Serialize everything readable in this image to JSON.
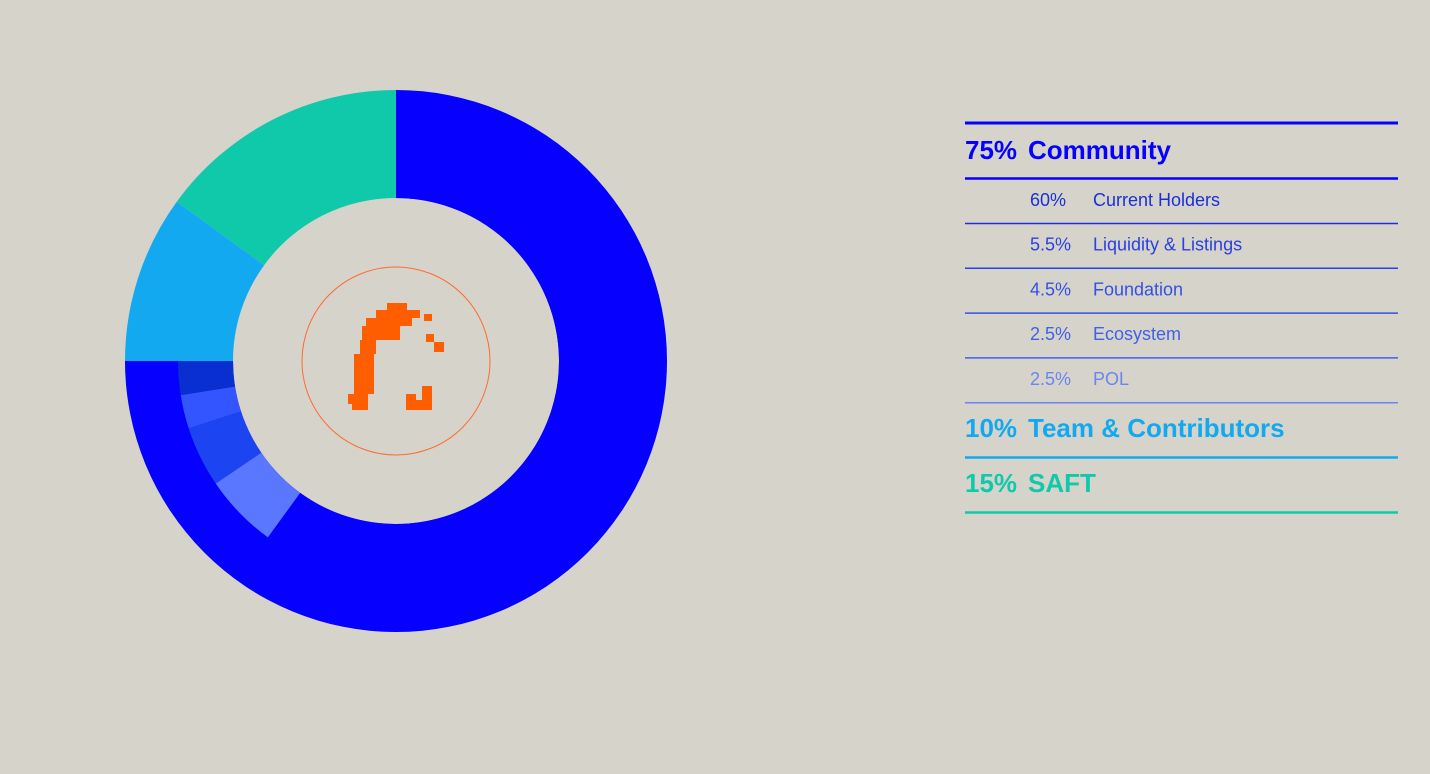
{
  "chart_data": {
    "type": "pie",
    "categories": [
      "Community",
      "Team & Contributors",
      "SAFT"
    ],
    "values": [
      75,
      10,
      15
    ],
    "value_labels": [
      "75%",
      "10%",
      "15%"
    ],
    "colors": [
      "#0500ff",
      "#12a9f0",
      "#10c9aa"
    ],
    "breakdown": {
      "categories": [
        "Current Holders",
        "Liquidity & Listings",
        "Foundation",
        "Ecosystem",
        "POL"
      ],
      "values": [
        60,
        5.5,
        4.5,
        2.5,
        2.5
      ],
      "value_labels": [
        "60%",
        "5.5%",
        "4.5%",
        "2.5%",
        "2.5%"
      ],
      "colors": [
        "#0500ff",
        "#5a78ff",
        "#1c44f0",
        "#3355ff",
        "#0a2fd1"
      ]
    }
  }
}
